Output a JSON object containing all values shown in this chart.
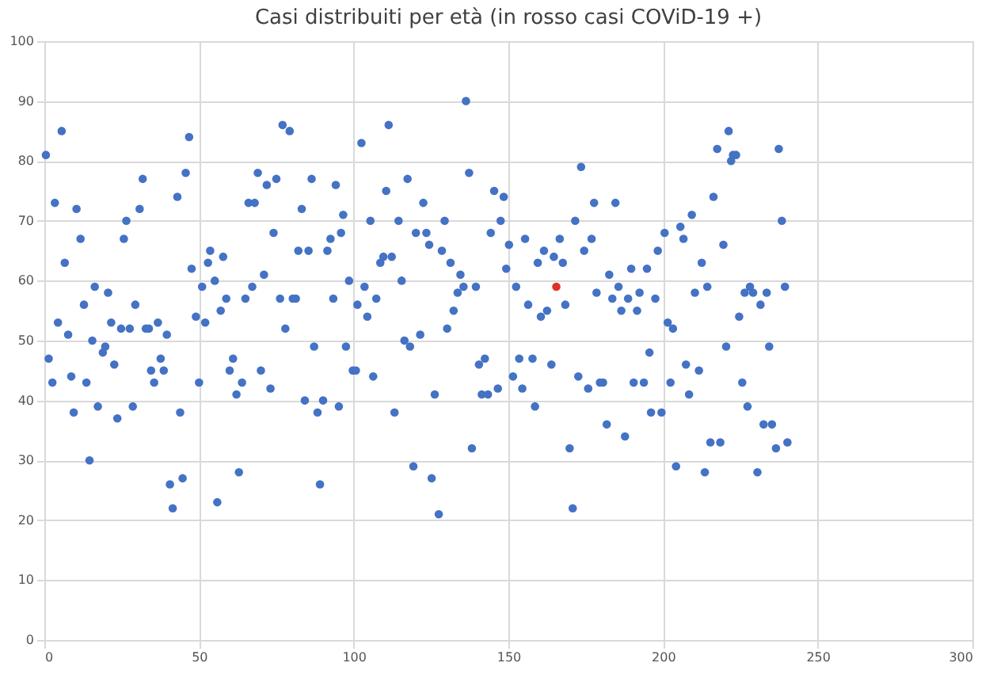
{
  "chart_data": {
    "type": "scatter",
    "title": "Casi distribuiti per età (in rosso casi COViD-19 +)",
    "xlim": [
      0,
      300
    ],
    "xticks": [
      0,
      50,
      100,
      150,
      200,
      250,
      300
    ],
    "ylim": [
      0,
      100
    ],
    "yticks": [
      0,
      10,
      20,
      30,
      40,
      50,
      60,
      70,
      80,
      90,
      100
    ],
    "grid": true,
    "marker": "circle",
    "series": [
      {
        "color": "#4472c4",
        "x": [
          0.5,
          1.4,
          2.6,
          3.4,
          4.4,
          5.6,
          6.6,
          7.7,
          8.7,
          9.5,
          10.4,
          11.7,
          12.8,
          13.6,
          14.6,
          15.5,
          16.3,
          17.3,
          18.9,
          19.7,
          20.6,
          21.6,
          22.6,
          23.6,
          24.8,
          25.7,
          26.5,
          27.6,
          28.6,
          29.4,
          30.8,
          31.8,
          32.8,
          33.8,
          34.5,
          35.5,
          36.7,
          37.6,
          38.6,
          39.6,
          40.6,
          41.5,
          43,
          43.9,
          44.7,
          45.7,
          46.8,
          47.6,
          49,
          50,
          51,
          52,
          52.9,
          53.6,
          55.1,
          55.9,
          57,
          57.8,
          58.8,
          59.9,
          61,
          62.1,
          62.9,
          63.9,
          65,
          66,
          67.2,
          68,
          69,
          70,
          71,
          71.9,
          73.1,
          74.1,
          75,
          76.2,
          77,
          77.9,
          79.3,
          80.3,
          81.3,
          82.1,
          83.2,
          84.2,
          85.4,
          86.4,
          87.2,
          88.3,
          89.1,
          90.1,
          91.5,
          92.5,
          93.4,
          94.2,
          95.2,
          95.9,
          96.6,
          97.5,
          98.5,
          99.7,
          100.7,
          101.2,
          102.5,
          103.5,
          104.4,
          105.4,
          106.3,
          107.3,
          108.6,
          109.6,
          110.5,
          111.3,
          112.3,
          113.2,
          114.5,
          115.5,
          116.4,
          117.4,
          118.2,
          119.3,
          120.1,
          121.5,
          122.5,
          123.5,
          124.4,
          125.2,
          126.2,
          127.5,
          128.5,
          129.4,
          130.2,
          131.3,
          132.3,
          133.6,
          134.5,
          135.5,
          136.3,
          137.3,
          138.2,
          139.5,
          140.5,
          141.4,
          142.4,
          143.4,
          144.3,
          145.4,
          146.6,
          147.5,
          148.5,
          149.3,
          150.2,
          151.5,
          152.5,
          153.5,
          154.5,
          155.4,
          156.4,
          157.8,
          158.6,
          159.5,
          160.5,
          161.5,
          162.5,
          163.9,
          164.7,
          166.6,
          167.6,
          168.4,
          169.8,
          170.8,
          171.6,
          172.6,
          173.5,
          174.5,
          175.8,
          176.9,
          177.7,
          178.5,
          179.6,
          180.6,
          181.8,
          182.6,
          183.6,
          184.6,
          185.6,
          186.5,
          187.7,
          188.7,
          189.7,
          190.5,
          191.6,
          192.4,
          193.8,
          194.8,
          195.6,
          196.1,
          197.5,
          198.3,
          199.5,
          200.5,
          201.5,
          202.4,
          203.2,
          204.2,
          205.6,
          206.6,
          207.4,
          208.4,
          209.3,
          210.3,
          211.6,
          212.5,
          213.5,
          214.3,
          215.3,
          216.3,
          217.5,
          218.5,
          219.5,
          220.4,
          221.2,
          222,
          222.6,
          223.6,
          224.6,
          225.6,
          226.4,
          227.3,
          228.1,
          229.1,
          230.5,
          231.5,
          232.5,
          233.5,
          234.3,
          235.2,
          236.5,
          237.4,
          238.4,
          239.4,
          240.2
        ],
        "values": [
          81,
          47,
          43,
          73,
          53,
          85,
          63,
          51,
          44,
          38,
          72,
          67,
          56,
          43,
          30,
          50,
          59,
          39,
          48,
          49,
          58,
          53,
          46,
          37,
          52,
          67,
          70,
          52,
          39,
          56,
          72,
          77,
          52,
          52,
          45,
          43,
          53,
          47,
          45,
          51,
          26,
          22,
          74,
          38,
          27,
          78,
          84,
          62,
          54,
          43,
          59,
          53,
          63,
          65,
          60,
          23,
          55,
          64,
          57,
          45,
          47,
          41,
          28,
          43,
          57,
          73,
          59,
          73,
          78,
          45,
          61,
          76,
          42,
          68,
          77,
          57,
          86,
          52,
          85,
          57,
          57,
          65,
          72,
          40,
          65,
          77,
          49,
          38,
          26,
          40,
          65,
          67,
          57,
          76,
          39,
          68,
          71,
          49,
          60,
          45,
          45,
          56,
          83,
          59,
          54,
          70,
          44,
          57,
          63,
          64,
          75,
          86,
          64,
          38,
          70,
          60,
          50,
          77,
          49,
          29,
          68,
          51,
          73,
          68,
          66,
          27,
          41,
          21,
          65,
          70,
          52,
          63,
          55,
          58,
          61,
          59,
          90,
          78,
          32,
          59,
          46,
          41,
          47,
          41,
          68,
          75,
          42,
          70,
          74,
          62,
          66,
          44,
          59,
          47,
          42,
          67,
          56,
          47,
          39,
          63,
          54,
          65,
          55,
          46,
          64,
          67,
          63,
          56,
          32,
          22,
          70,
          44,
          79,
          65,
          42,
          67,
          73,
          58,
          43,
          43,
          36,
          61,
          57,
          73,
          59,
          55,
          34,
          57,
          62,
          43,
          55,
          58,
          43,
          62,
          48,
          38,
          57,
          65,
          38,
          68,
          53,
          43,
          52,
          29,
          69,
          67,
          46,
          41,
          71,
          58,
          45,
          63,
          28,
          59,
          33,
          74,
          82,
          33,
          66,
          49,
          85,
          80,
          81,
          81,
          54,
          43,
          58,
          39,
          59,
          58,
          28,
          56,
          36,
          58,
          49,
          36,
          32,
          82,
          70,
          59,
          33
        ]
      },
      {
        "color": "#e0302a",
        "x": [
          165.5
        ],
        "values": [
          59
        ]
      }
    ]
  }
}
